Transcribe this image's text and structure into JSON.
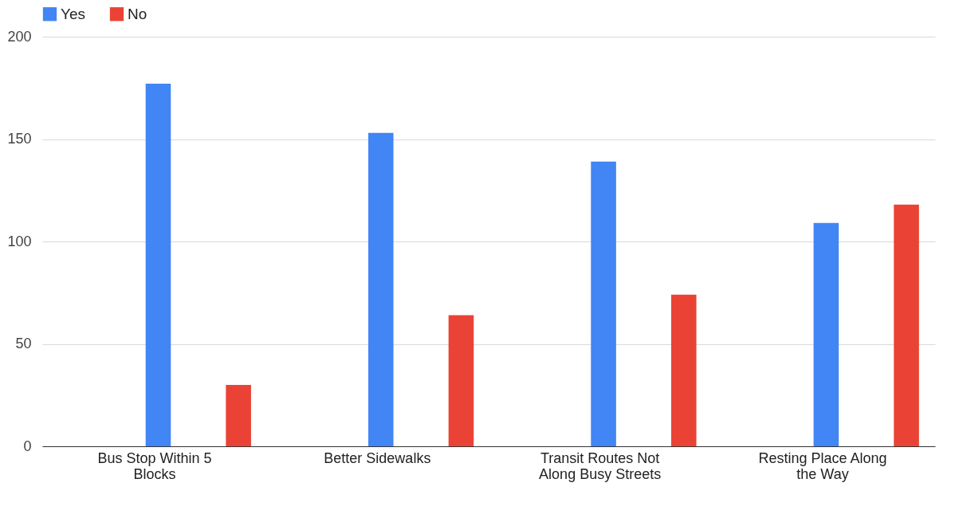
{
  "chart_data": {
    "type": "bar",
    "categories": [
      "Bus Stop Within 5 Blocks",
      "Better Sidewalks",
      "Transit Routes Not Along Busy Streets",
      "Resting Place Along the Way"
    ],
    "series": [
      {
        "name": "Yes",
        "color": "#4285f4",
        "values": [
          177,
          153,
          139,
          109
        ]
      },
      {
        "name": "No",
        "color": "#ea4335",
        "values": [
          30,
          64,
          74,
          118
        ]
      }
    ],
    "ylim": [
      0,
      200
    ],
    "yticks": [
      0,
      50,
      100,
      150,
      200
    ],
    "grid": "y",
    "legend": "top"
  }
}
